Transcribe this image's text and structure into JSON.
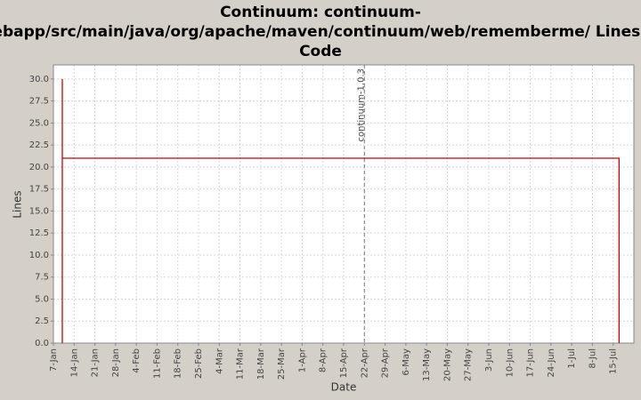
{
  "chart_data": {
    "type": "line",
    "title": [
      "Continuum: continuum-",
      "webapp/src/main/java/org/apache/maven/continuum/web/rememberme/ Lines of",
      "Code"
    ],
    "x_label": "Date",
    "y_label": "Lines",
    "x": [
      "10-Jan",
      "10-Jan",
      "10-Jan",
      "17-Jul",
      "17-Jul"
    ],
    "series": [
      {
        "name": "Lines",
        "color": "#cc0000",
        "values": [
          0,
          30,
          21,
          21,
          0
        ]
      }
    ],
    "xlim": [
      "7-Jan",
      "22-Jul"
    ],
    "xticks": [
      "7-Jan",
      "14-Jan",
      "21-Jan",
      "28-Jan",
      "4-Feb",
      "11-Feb",
      "18-Feb",
      "25-Feb",
      "4-Mar",
      "11-Mar",
      "18-Mar",
      "25-Mar",
      "1-Apr",
      "8-Apr",
      "15-Apr",
      "22-Apr",
      "29-Apr",
      "6-May",
      "13-May",
      "20-May",
      "27-May",
      "3-Jun",
      "10-Jun",
      "17-Jun",
      "24-Jun",
      "1-Jul",
      "8-Jul",
      "15-Jul"
    ],
    "ylim": [
      0,
      31.6
    ],
    "yticks": [
      {
        "value": 0,
        "label": "0.0"
      },
      {
        "value": 2.5,
        "label": "2.5"
      },
      {
        "value": 5,
        "label": "5.0"
      },
      {
        "value": 7.5,
        "label": "7.5"
      },
      {
        "value": 10,
        "label": "10.0"
      },
      {
        "value": 12.5,
        "label": "12.5"
      },
      {
        "value": 15,
        "label": "15.0"
      },
      {
        "value": 17.5,
        "label": "17.5"
      },
      {
        "value": 20,
        "label": "20.0"
      },
      {
        "value": 22.5,
        "label": "22.5"
      },
      {
        "value": 25,
        "label": "25.0"
      },
      {
        "value": 27.5,
        "label": "27.5"
      },
      {
        "value": 30,
        "label": "30.0"
      }
    ],
    "grid": true,
    "markers": [
      {
        "label": "continuum-1.0.3",
        "x": "22-Apr"
      }
    ]
  }
}
